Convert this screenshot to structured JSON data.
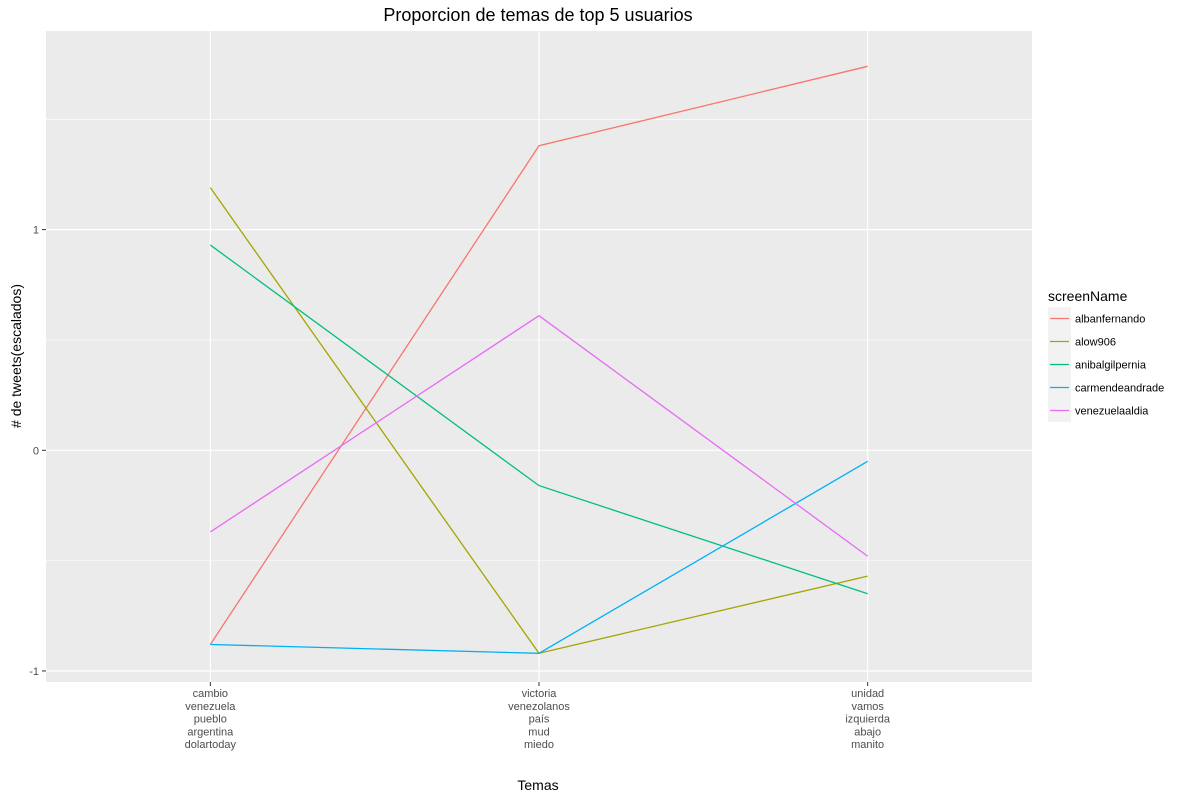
{
  "chart_data": {
    "type": "line",
    "title": "Proporcion de temas de top 5 usuarios",
    "xlabel": "Temas",
    "ylabel": "# de tweets(escalados)",
    "categories": [
      [
        "cambio",
        "venezuela",
        "pueblo",
        "argentina",
        "dolartoday"
      ],
      [
        "victoria",
        "venezolanos",
        "país",
        "mud",
        "miedo"
      ],
      [
        "unidad",
        "vamos",
        "izquierda",
        "abajo",
        "manito"
      ]
    ],
    "y_ticks": [
      -1,
      0,
      1
    ],
    "ylim": [
      -1.05,
      1.9
    ],
    "grid": true,
    "legend_title": "screenName",
    "legend_position": "right",
    "series": [
      {
        "name": "albanfernando",
        "color": "#F8766D",
        "values": [
          -0.88,
          1.38,
          1.74
        ]
      },
      {
        "name": "alow906",
        "color": "#A3A500",
        "values": [
          1.19,
          -0.92,
          -0.57
        ]
      },
      {
        "name": "anibalgilpernia",
        "color": "#00BF7D",
        "values": [
          0.93,
          -0.16,
          -0.65
        ]
      },
      {
        "name": "carmendeandrade",
        "color": "#00B0F6",
        "values": [
          -0.88,
          -0.92,
          -0.05
        ]
      },
      {
        "name": "venezuelaaldia",
        "color": "#E76BF3",
        "values": [
          -0.37,
          0.61,
          -0.48
        ]
      }
    ]
  }
}
